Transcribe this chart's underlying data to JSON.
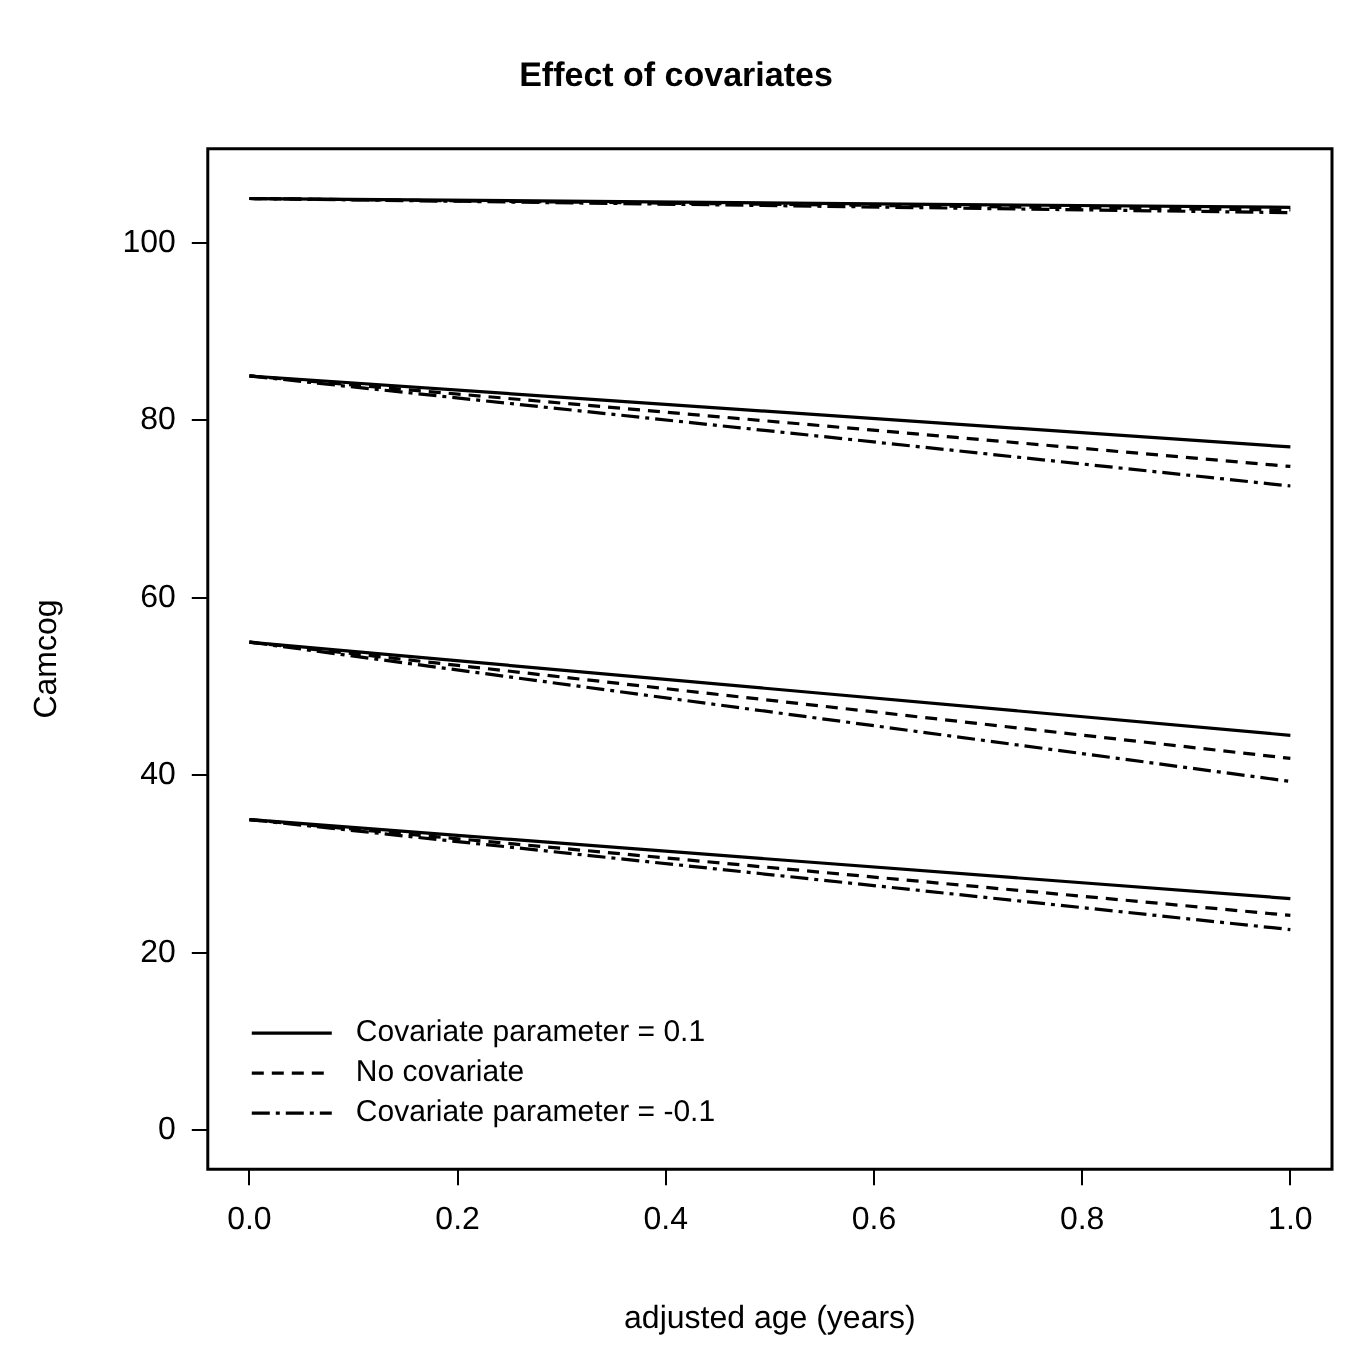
{
  "chart_data": {
    "type": "line",
    "title": "Effect of covariates",
    "xlabel": "adjusted age (years)",
    "ylabel": "Camcog",
    "x": [
      0,
      1
    ],
    "xlim": [
      -0.04,
      1.04
    ],
    "xticks": [
      {
        "value": 0,
        "label": "0.0"
      },
      {
        "value": 0.2,
        "label": "0.2"
      },
      {
        "value": 0.4,
        "label": "0.4"
      },
      {
        "value": 0.6,
        "label": "0.6"
      },
      {
        "value": 0.8,
        "label": "0.8"
      },
      {
        "value": 1,
        "label": "1.0"
      }
    ],
    "ylim": [
      -4.4,
      110.6
    ],
    "yticks": [
      0,
      20,
      40,
      60,
      80,
      100
    ],
    "grid": false,
    "legend": "bottom left",
    "marker": "none",
    "series": [
      {
        "name": "Covariate parameter = 0.1",
        "color": "#000000",
        "line_style": "solid",
        "values": [
          105,
          104.0
        ]
      },
      {
        "name": "No covariate",
        "color": "#000000",
        "line_style": "dashed",
        "values": [
          105,
          103.7
        ]
      },
      {
        "name": "Covariate parameter = -0.1",
        "color": "#000000",
        "line_style": "dashdot",
        "values": [
          105,
          103.4
        ]
      },
      {
        "color": "#000000",
        "line_style": "solid",
        "values": [
          85,
          77.0
        ]
      },
      {
        "color": "#000000",
        "line_style": "dashed",
        "values": [
          85,
          74.8
        ]
      },
      {
        "color": "#000000",
        "line_style": "dashdot",
        "values": [
          85,
          72.6
        ]
      },
      {
        "color": "#000000",
        "line_style": "solid",
        "values": [
          55,
          44.5
        ]
      },
      {
        "color": "#000000",
        "line_style": "dashed",
        "values": [
          55,
          41.9
        ]
      },
      {
        "color": "#000000",
        "line_style": "dashdot",
        "values": [
          55,
          39.3
        ]
      },
      {
        "color": "#000000",
        "line_style": "solid",
        "values": [
          35,
          26.1
        ]
      },
      {
        "color": "#000000",
        "line_style": "dashed",
        "values": [
          35,
          24.2
        ]
      },
      {
        "color": "#000000",
        "line_style": "dashdot",
        "values": [
          35,
          22.6
        ]
      }
    ]
  }
}
